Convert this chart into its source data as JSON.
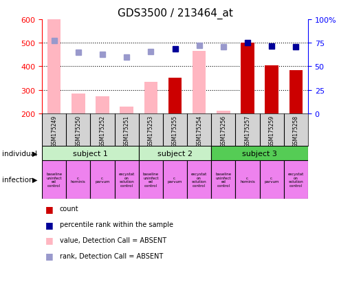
{
  "title": "GDS3500 / 213464_at",
  "samples": [
    "GSM175249",
    "GSM175250",
    "GSM175252",
    "GSM175251",
    "GSM175253",
    "GSM175255",
    "GSM175254",
    "GSM175256",
    "GSM175257",
    "GSM175259",
    "GSM175258"
  ],
  "count_values": [
    null,
    null,
    null,
    null,
    null,
    350,
    null,
    null,
    500,
    405,
    385
  ],
  "value_absent": [
    600,
    285,
    272,
    228,
    335,
    null,
    465,
    210,
    null,
    null,
    null
  ],
  "rank_absent": [
    510,
    460,
    450,
    438,
    462,
    null,
    490,
    482,
    null,
    null,
    null
  ],
  "rank_present": [
    null,
    null,
    null,
    null,
    null,
    474,
    null,
    null,
    500,
    485,
    483
  ],
  "ylim_left": [
    200,
    600
  ],
  "ylim_right": [
    0,
    100
  ],
  "left_ticks": [
    200,
    300,
    400,
    500,
    600
  ],
  "right_ticks": [
    0,
    25,
    50,
    75,
    100
  ],
  "right_tick_labels": [
    "0",
    "25",
    "50",
    "75",
    "100%"
  ],
  "subjects": [
    {
      "label": "subject 1",
      "start": 0,
      "end": 4
    },
    {
      "label": "subject 2",
      "start": 4,
      "end": 7
    },
    {
      "label": "subject 3",
      "start": 7,
      "end": 11
    }
  ],
  "subject_colors": [
    "#c8f0c8",
    "#c8f0c8",
    "#55cc55"
  ],
  "infections": [
    "baseline\nuninfect\ned\ncontrol",
    "c.\nhominis",
    "c.\nparvum",
    "excystat\non\nsolution\ncontrol",
    "baseline\nuninfect\ned\ncontrol",
    "c.\nparvum",
    "excystat\non\nsolution\ncontrol",
    "baseline\nuninfect\ned\ncontrol",
    "c.\nhominis",
    "c.\nparvum",
    "excystat\non\nsolution\ncontrol"
  ],
  "bar_color_present": "#cc0000",
  "bar_color_absent": "#ffb6c1",
  "dot_color_present": "#000099",
  "dot_color_absent": "#9999cc",
  "infection_color": "#ee82ee",
  "gsm_bg": "#d3d3d3",
  "legend_items": [
    {
      "color": "#cc0000",
      "label": "count"
    },
    {
      "color": "#000099",
      "label": "percentile rank within the sample"
    },
    {
      "color": "#ffb6c1",
      "label": "value, Detection Call = ABSENT"
    },
    {
      "color": "#9999cc",
      "label": "rank, Detection Call = ABSENT"
    }
  ]
}
